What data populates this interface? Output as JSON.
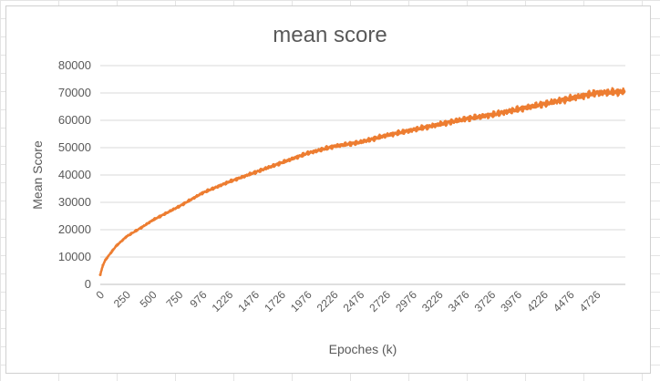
{
  "chart_data": {
    "type": "line",
    "title": "mean score",
    "xlabel": "Epoches (k)",
    "ylabel": "Mean Score",
    "ylim": [
      0,
      80000
    ],
    "yticks": [
      "0",
      "10000",
      "20000",
      "30000",
      "40000",
      "50000",
      "60000",
      "70000",
      "80000"
    ],
    "xticks": [
      "0",
      "250",
      "500",
      "750",
      "976",
      "1226",
      "1476",
      "1726",
      "1976",
      "2226",
      "2476",
      "2726",
      "2976",
      "3226",
      "3476",
      "3726",
      "3976",
      "4226",
      "4476",
      "4726"
    ],
    "xlim": [
      0,
      5000
    ],
    "grid": true,
    "legend": "none",
    "color": "#ED7D31",
    "series": [
      {
        "x": [
          0,
          25,
          50,
          100,
          150,
          250,
          400,
          500,
          750,
          976,
          1226,
          1476,
          1726,
          1976,
          2226,
          2476,
          2726,
          2976,
          3226,
          3476,
          3726,
          3976,
          4226,
          4476,
          4726,
          4990
        ],
        "values": [
          3500,
          7000,
          9000,
          11500,
          14000,
          17500,
          21000,
          23500,
          28500,
          33500,
          37500,
          41000,
          44500,
          48000,
          50500,
          52000,
          54500,
          56500,
          58500,
          60500,
          62000,
          64000,
          66000,
          68000,
          70000,
          70500
        ]
      }
    ]
  }
}
